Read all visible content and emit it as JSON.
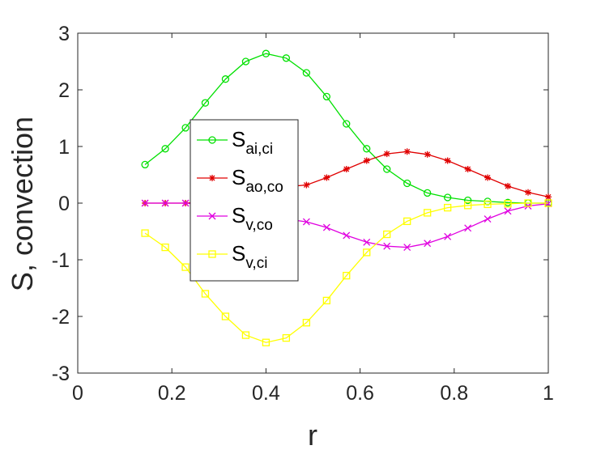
{
  "chart_data": {
    "type": "line",
    "xlabel": "r",
    "ylabel": "S, convection",
    "xlim": [
      0,
      1
    ],
    "ylim": [
      -3,
      3
    ],
    "xticks": [
      0,
      0.2,
      0.4,
      0.6,
      0.8,
      1
    ],
    "xtick_labels": [
      "0",
      "0.2",
      "0.4",
      "0.6",
      "0.8",
      "1"
    ],
    "yticks": [
      -3,
      -2,
      -1,
      0,
      1,
      2,
      3
    ],
    "ytick_labels": [
      "-3",
      "-2",
      "-1",
      "0",
      "1",
      "2",
      "3"
    ],
    "grid": false,
    "legend_position": "center-left",
    "x": [
      0.143,
      0.186,
      0.229,
      0.271,
      0.314,
      0.357,
      0.4,
      0.443,
      0.486,
      0.529,
      0.571,
      0.614,
      0.657,
      0.7,
      0.743,
      0.786,
      0.829,
      0.871,
      0.914,
      0.957,
      1.0
    ],
    "series": [
      {
        "name_main": "S",
        "name_sub": "ai,ci",
        "color": "#00e000",
        "marker": "circle",
        "values": [
          0.68,
          0.96,
          1.33,
          1.77,
          2.19,
          2.5,
          2.64,
          2.56,
          2.3,
          1.88,
          1.4,
          0.96,
          0.6,
          0.35,
          0.18,
          0.1,
          0.05,
          0.03,
          0.01,
          0.0,
          0.0
        ]
      },
      {
        "name_main": "S",
        "name_sub": "ao,co",
        "color": "#e00000",
        "marker": "asterisk",
        "values": [
          0.0,
          0.0,
          0.0,
          0.02,
          0.06,
          0.12,
          0.2,
          0.29,
          0.32,
          0.45,
          0.6,
          0.75,
          0.87,
          0.91,
          0.86,
          0.75,
          0.6,
          0.45,
          0.3,
          0.19,
          0.11
        ]
      },
      {
        "name_main": "S",
        "name_sub": "v,co",
        "color": "#e000e0",
        "marker": "x",
        "values": [
          0.0,
          0.0,
          0.0,
          -0.03,
          -0.08,
          -0.13,
          -0.2,
          -0.28,
          -0.33,
          -0.43,
          -0.57,
          -0.69,
          -0.76,
          -0.78,
          -0.71,
          -0.59,
          -0.44,
          -0.28,
          -0.14,
          -0.05,
          -0.01
        ]
      },
      {
        "name_main": "S",
        "name_sub": "v,ci",
        "color": "#ffff00",
        "marker": "square",
        "values": [
          -0.53,
          -0.78,
          -1.13,
          -1.6,
          -2.0,
          -2.33,
          -2.46,
          -2.38,
          -2.11,
          -1.72,
          -1.28,
          -0.87,
          -0.55,
          -0.32,
          -0.17,
          -0.08,
          -0.04,
          -0.02,
          -0.01,
          0.0,
          0.0
        ]
      }
    ]
  }
}
